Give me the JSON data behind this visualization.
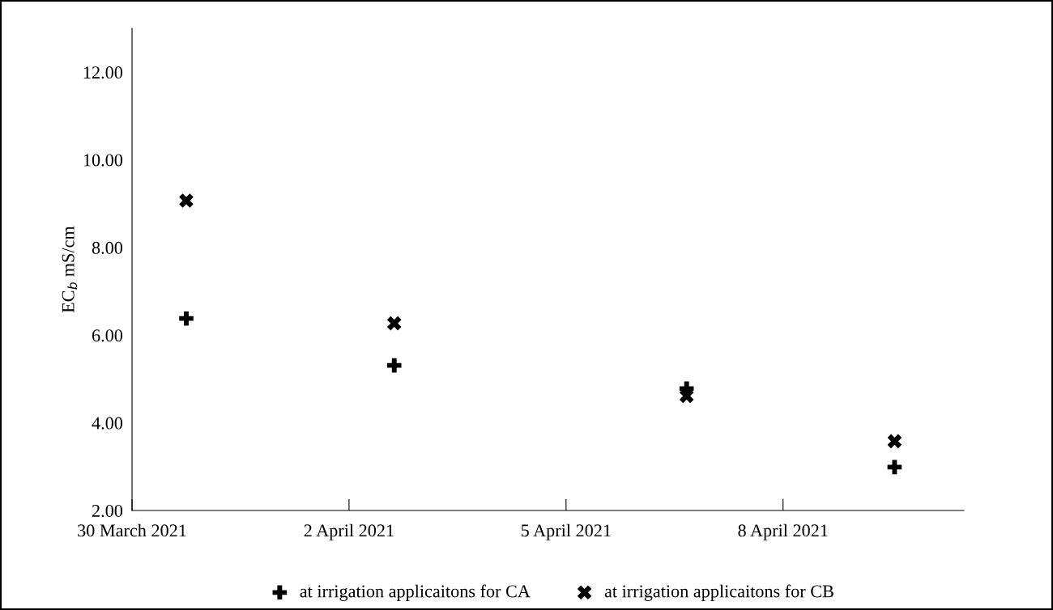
{
  "chart_data": {
    "type": "scatter",
    "ylabel": "EC$_{b}$ mS/cm",
    "xlim": [
      "2021-03-30",
      "2021-04-10T12:00"
    ],
    "xticks": [
      {
        "value": "2021-03-30",
        "label": "30 March 2021"
      },
      {
        "value": "2021-04-02",
        "label": "2 April 2021"
      },
      {
        "value": "2021-04-05",
        "label": "5 April 2021"
      },
      {
        "value": "2021-04-08",
        "label": "8 April 2021"
      }
    ],
    "ylim": [
      2,
      13
    ],
    "yticks": [
      {
        "value": 2,
        "label": "2.00"
      },
      {
        "value": 4,
        "label": "4.00"
      },
      {
        "value": 6,
        "label": "6.00"
      },
      {
        "value": 8,
        "label": "8.00"
      },
      {
        "value": 10,
        "label": "10.00"
      },
      {
        "value": 12,
        "label": "12.00"
      }
    ],
    "x": [
      "2021-03-30T18:00",
      "2021-04-02T15:00",
      "2021-04-06T16:00",
      "2021-04-09T13:00"
    ],
    "series": [
      {
        "name": "at irrigation applicaitons for CA",
        "color": "#000000",
        "marker": "plus",
        "values": [
          6.38,
          5.31,
          4.78,
          2.99
        ]
      },
      {
        "name": "at irrigation applicaitons for CB",
        "color": "#000000",
        "marker": "cross",
        "values": [
          9.07,
          6.27,
          4.61,
          3.58
        ]
      }
    ],
    "grid": false,
    "legend": "bottom"
  }
}
